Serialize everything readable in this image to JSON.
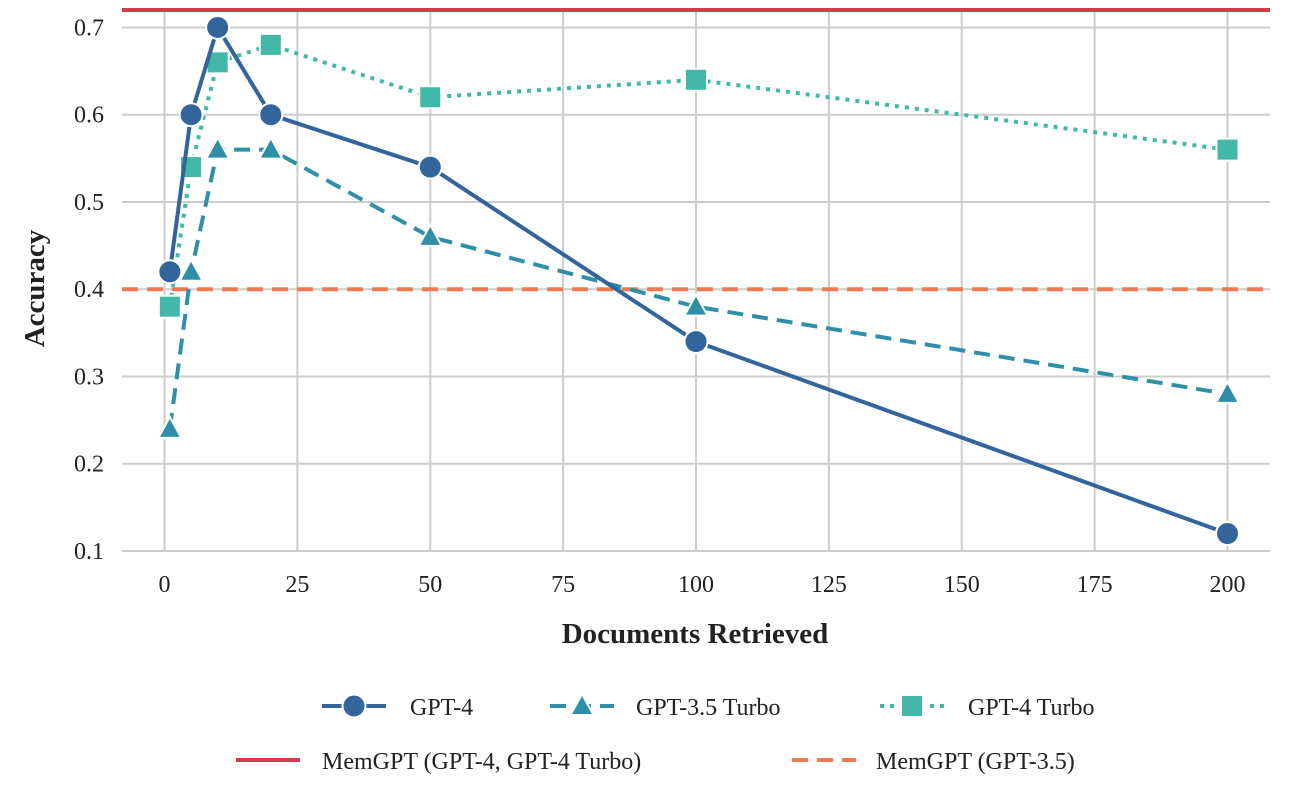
{
  "chart_data": {
    "type": "line",
    "xlabel": "Documents Retrieved",
    "ylabel": "Accuracy",
    "xlim": [
      -8,
      208
    ],
    "ylim": [
      0.1,
      0.72
    ],
    "x_ticks": [
      0,
      25,
      50,
      75,
      100,
      125,
      150,
      175,
      200
    ],
    "y_ticks": [
      0.1,
      0.2,
      0.3,
      0.4,
      0.5,
      0.6,
      0.7
    ],
    "grid": true,
    "legend_position": "bottom-center",
    "series": [
      {
        "name": "GPT-4",
        "x": [
          1,
          5,
          10,
          20,
          50,
          100,
          200
        ],
        "values": [
          0.42,
          0.6,
          0.7,
          0.6,
          0.54,
          0.34,
          0.12
        ],
        "color": "#34649c",
        "line_style": "solid",
        "marker": "circle"
      },
      {
        "name": "GPT-3.5 Turbo",
        "x": [
          1,
          5,
          10,
          20,
          50,
          100,
          200
        ],
        "values": [
          0.24,
          0.42,
          0.56,
          0.56,
          0.46,
          0.38,
          0.28
        ],
        "color": "#2f8fa6",
        "line_style": "dashed",
        "marker": "triangle"
      },
      {
        "name": "GPT-4 Turbo",
        "x": [
          1,
          5,
          10,
          20,
          50,
          100,
          200
        ],
        "values": [
          0.38,
          0.54,
          0.66,
          0.68,
          0.62,
          0.64,
          0.56
        ],
        "color": "#42b8a8",
        "line_style": "dotted",
        "marker": "square"
      }
    ],
    "reference_lines": [
      {
        "name": "MemGPT (GPT-4, GPT-4 Turbo)",
        "y": 0.72,
        "color": "#d63a48",
        "line_style": "solid"
      },
      {
        "name": "MemGPT (GPT-3.5)",
        "y": 0.4,
        "color": "#ef7a50",
        "line_style": "dashed"
      }
    ]
  }
}
